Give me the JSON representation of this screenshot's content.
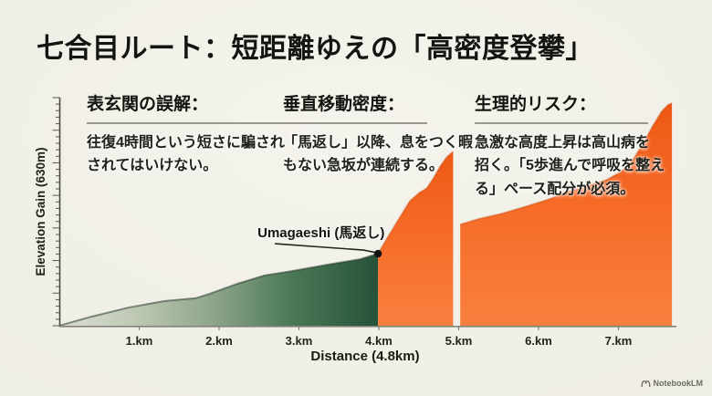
{
  "title": "七合目ルート：短距離ゆえの「高密度登攀」",
  "callouts": [
    {
      "heading": "表玄関の誤解：",
      "body": "往復4時間という短さに騙され\nされてはいけない。"
    },
    {
      "heading": "垂直移動密度：",
      "body": "「馬返し」以降、息をつく暇\nもない急坂が連続する。"
    },
    {
      "heading": "生理的リスク：",
      "body": "急激な高度上昇は高山病を\n招く。「5歩進んで呼吸を整え\nる」ペース配分が必須。"
    }
  ],
  "watermark": {
    "label": "NotebookLM"
  },
  "colors": {
    "background": "#f4f3ec",
    "ink": "#141410",
    "green_dark": "#265239",
    "green_light": "#dcdfd4",
    "orange_top": "#ee5915",
    "orange_bottom": "#f8803f",
    "axis": "#4a4a44"
  },
  "chart_data": {
    "type": "area",
    "title": "",
    "xlabel": "Distance (4.8km)",
    "ylabel": "Elevation Gain (630m)",
    "x_ticks": [
      "1.km",
      "2.km",
      "3.km",
      "4.km",
      "5.km",
      "6.km",
      "7.km"
    ],
    "x_range_km": [
      0,
      7.8
    ],
    "y_range_m": [
      0,
      630
    ],
    "grid": false,
    "legend": false,
    "annotation": {
      "label": "Umagaeshi (馬返し)",
      "x_km": 3.99,
      "elevation_m": 199
    },
    "segments": [
      {
        "name": "lower-trail-green",
        "direction": "horizontal",
        "gradient": [
          [
            0,
            "#dcdfd4"
          ],
          [
            0.25,
            "#bcc7b2"
          ],
          [
            0.5,
            "#8aa287"
          ],
          [
            0.72,
            "#4c7a57"
          ],
          [
            1,
            "#265239"
          ]
        ],
        "edge_stroke": "rgba(40,58,44,0.55)",
        "points_km_m": [
          [
            0,
            0
          ],
          [
            0.4,
            25
          ],
          [
            0.86,
            50
          ],
          [
            1.31,
            68
          ],
          [
            1.71,
            76
          ],
          [
            1.88,
            88
          ],
          [
            2.23,
            116
          ],
          [
            2.57,
            139
          ],
          [
            2.91,
            151
          ],
          [
            3.37,
            169
          ],
          [
            3.77,
            184
          ],
          [
            3.99,
            199
          ]
        ]
      },
      {
        "name": "steep-section-orange",
        "direction": "vertical",
        "gradient": [
          [
            0,
            "#ee5915"
          ],
          [
            0.5,
            "#f66c29"
          ],
          [
            1,
            "#f8803f"
          ]
        ],
        "edge_stroke": "rgba(198,66,8,0.35)",
        "points_km_m": [
          [
            3.99,
            199
          ],
          [
            4.11,
            244
          ],
          [
            4.25,
            295
          ],
          [
            4.39,
            345
          ],
          [
            4.51,
            368
          ],
          [
            4.6,
            380
          ],
          [
            4.68,
            406
          ],
          [
            4.77,
            441
          ],
          [
            4.85,
            466
          ],
          [
            4.93,
            481
          ]
        ]
      },
      {
        "name": "upper-section-orange",
        "direction": "vertical",
        "gradient": [
          [
            0,
            "#ee5915"
          ],
          [
            0.5,
            "#f66c29"
          ],
          [
            1,
            "#f8803f"
          ]
        ],
        "edge_stroke": "rgba(198,66,8,0.35)",
        "points_km_m": [
          [
            5.02,
            280
          ],
          [
            5.25,
            295
          ],
          [
            5.54,
            310
          ],
          [
            5.82,
            328
          ],
          [
            6.11,
            348
          ],
          [
            6.36,
            370
          ],
          [
            6.62,
            386
          ],
          [
            6.85,
            403
          ],
          [
            7.04,
            426
          ],
          [
            7.19,
            461
          ],
          [
            7.32,
            507
          ],
          [
            7.43,
            552
          ],
          [
            7.54,
            592
          ],
          [
            7.62,
            610
          ],
          [
            7.67,
            615
          ]
        ]
      }
    ]
  }
}
